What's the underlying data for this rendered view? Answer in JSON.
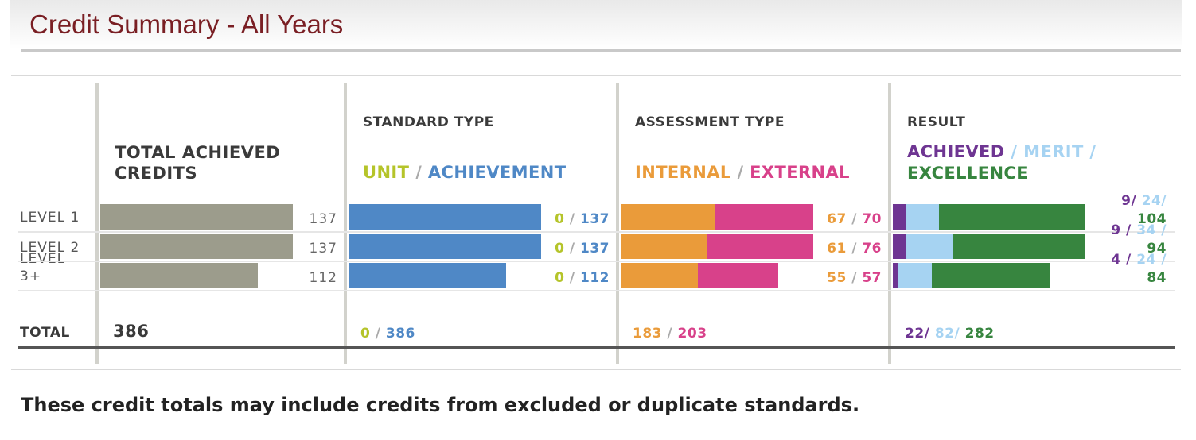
{
  "page": {
    "title": "Credit Summary - All Years",
    "footnote": "These credit totals may include credits from excluded or duplicate standards."
  },
  "chart_data": {
    "type": "bar",
    "categories": [
      "LEVEL 1",
      "LEVEL 2",
      "LEVEL 3+"
    ],
    "total_label": "TOTAL",
    "total_achieved": {
      "heading": "TOTAL ACHIEVED CREDITS",
      "values": [
        137,
        137,
        112
      ],
      "total": "386",
      "max": 137
    },
    "standard_type": {
      "title": "STANDARD TYPE",
      "legend": [
        "UNIT",
        "ACHIEVEMENT"
      ],
      "series": [
        {
          "name": "UNIT",
          "values": [
            0,
            0,
            0
          ]
        },
        {
          "name": "ACHIEVEMENT",
          "values": [
            137,
            137,
            112
          ]
        }
      ],
      "totals": [
        "0",
        "386"
      ]
    },
    "assessment_type": {
      "title": "ASSESSMENT TYPE",
      "legend": [
        "INTERNAL",
        "EXTERNAL"
      ],
      "series": [
        {
          "name": "INTERNAL",
          "values": [
            67,
            61,
            55
          ]
        },
        {
          "name": "EXTERNAL",
          "values": [
            70,
            76,
            57
          ]
        }
      ],
      "totals": [
        "183",
        "203"
      ]
    },
    "result": {
      "title": "RESULT",
      "legend": [
        "ACHIEVED",
        "MERIT",
        "EXCELLENCE"
      ],
      "series": [
        {
          "name": "ACHIEVED",
          "values": [
            9,
            9,
            4
          ]
        },
        {
          "name": "MERIT",
          "values": [
            24,
            34,
            24
          ]
        },
        {
          "name": "EXCELLENCE",
          "values": [
            104,
            94,
            84
          ]
        }
      ],
      "totals": [
        "22",
        "82",
        "282"
      ]
    },
    "colors": {
      "total": "#9c9c8c",
      "unit": "#b5c42a",
      "achievement": "#4f88c6",
      "internal": "#ea9b3a",
      "external": "#d8418a",
      "achieved": "#6e3592",
      "merit": "#a6d3f2",
      "excellence": "#37853f"
    }
  }
}
